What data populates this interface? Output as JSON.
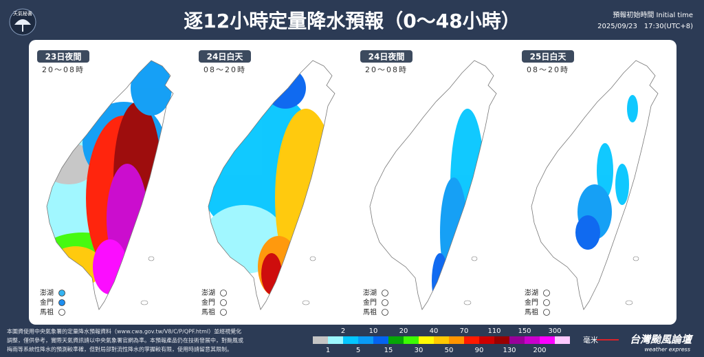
{
  "header": {
    "logo": "天氣秘書",
    "title": "逐12小時定量降水預報（0～48小時）",
    "init_label": "預報初始時間 Initial time",
    "init_time": "2025/09/23　17:30(UTC+8)"
  },
  "panels": [
    {
      "day": "23日夜間",
      "hours": "20～08時",
      "islands": [
        {
          "name": "澎湖",
          "color": "#35b4f2"
        },
        {
          "name": "金門",
          "color": "#1e8ff0"
        },
        {
          "name": "馬祖",
          "color": "#ffffff"
        }
      ]
    },
    {
      "day": "24日白天",
      "hours": "08～20時",
      "islands": [
        {
          "name": "澎湖",
          "color": "#ffffff"
        },
        {
          "name": "金門",
          "color": "#ffffff"
        },
        {
          "name": "馬祖",
          "color": "#ffffff"
        }
      ]
    },
    {
      "day": "24日夜間",
      "hours": "20～08時",
      "islands": [
        {
          "name": "澎湖",
          "color": "#ffffff"
        },
        {
          "name": "金門",
          "color": "#ffffff"
        },
        {
          "name": "馬祖",
          "color": "#ffffff"
        }
      ]
    },
    {
      "day": "25日白天",
      "hours": "08～20時",
      "islands": [
        {
          "name": "澎湖",
          "color": "#ffffff"
        },
        {
          "name": "金門",
          "color": "#ffffff"
        },
        {
          "name": "馬祖",
          "color": "#ffffff"
        }
      ]
    }
  ],
  "disclaimer": [
    "本圖資使用中央氣象署的定量降水預報資料（www.cwa.gov.tw/V8/C/P/QPF.html）並經視覺化",
    "調整，僅供參考，實際天氣資訊請以中央氣象署官網為準。本預報產品仍在技術發展中，對颱風或",
    "梅雨等系統性降水的預測較準確，但對局部對流性降水的掌握較有限，使用時請留意其限制。"
  ],
  "legend": {
    "upper": [
      2,
      10,
      20,
      40,
      70,
      110,
      150,
      300
    ],
    "lower": [
      1,
      5,
      15,
      30,
      50,
      90,
      130,
      200
    ],
    "colors": [
      "#c4c4c4",
      "#9cf7ff",
      "#04c6ff",
      "#0a9bf5",
      "#0463f0",
      "#06a606",
      "#3dfa04",
      "#fffa04",
      "#ffc802",
      "#ff9400",
      "#ff1a00",
      "#cc0000",
      "#990000",
      "#990099",
      "#c900cc",
      "#fb00ff",
      "#fdc9ff"
    ],
    "unit": "毫米"
  },
  "brand": {
    "name": "台灣颱風論壇",
    "tagline": "weather express"
  }
}
